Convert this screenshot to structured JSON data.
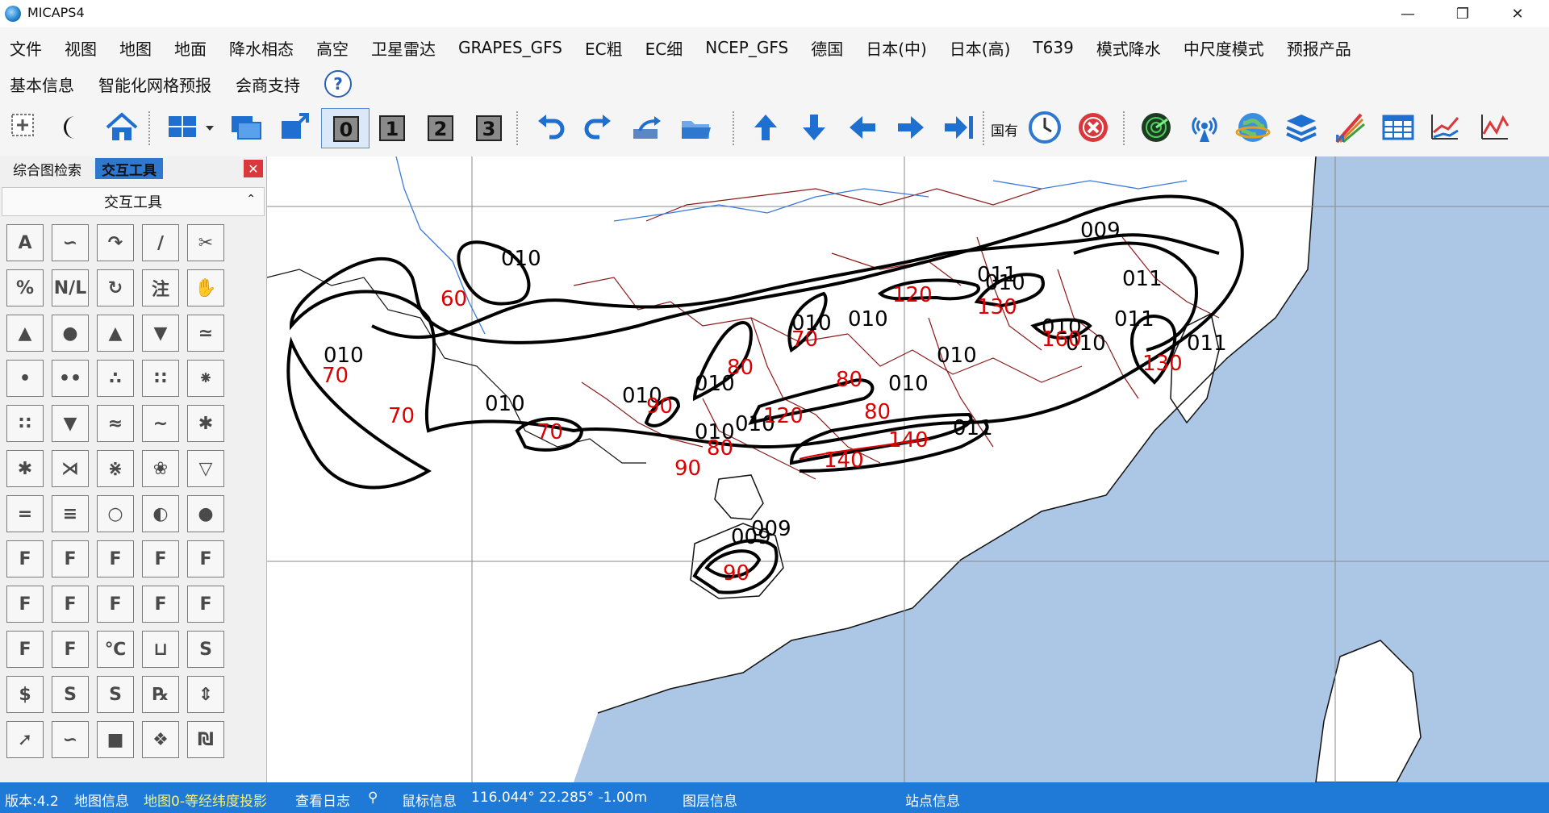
{
  "window": {
    "title": "MICAPS4"
  },
  "menu": {
    "row1": [
      "文件",
      "视图",
      "地图",
      "地面",
      "降水相态",
      "高空",
      "卫星雷达",
      "GRAPES_GFS",
      "EC粗",
      "EC细",
      "NCEP_GFS",
      "德国",
      "日本(中)",
      "日本(高)",
      "T639",
      "模式降水",
      "中尺度模式",
      "预报产品"
    ],
    "row2": [
      "基本信息",
      "智能化网格预报",
      "会商支持"
    ]
  },
  "toolbar": {
    "label_guoyou": "国有"
  },
  "left_panel": {
    "tabs": [
      "综合图检索",
      "交互工具"
    ],
    "header": "交互工具",
    "tool_icons": [
      "text-A-icon",
      "curve-icon",
      "arc-icon",
      "line-icon",
      "scissors-icon",
      "percent-icon",
      "nl-icon",
      "loop-icon",
      "annotate-icon",
      "hand-icon",
      "cold-front-icon",
      "warm-front-icon",
      "occluded-front-icon",
      "stationary-front-icon",
      "jet-icon",
      "dot1-icon",
      "dot2-icon",
      "dot3-icon",
      "dot4-icon",
      "dot5-icon",
      "grid-dots-icon",
      "drizzle-icon",
      "fog-icon",
      "haze-icon",
      "snowflake-star-icon",
      "snow-icon",
      "blowing-snow-icon",
      "drifting-snow-icon",
      "sandstorm-icon",
      "shower-icon",
      "double-line-icon",
      "triple-line-icon",
      "circle-icon",
      "half-circle-icon",
      "filled-circle-icon",
      "flag1-icon",
      "flag2-icon",
      "flag3-icon",
      "flag4-icon",
      "flag5-icon",
      "flag6-icon",
      "flag7-icon",
      "flag8-icon",
      "flag9-icon",
      "flag10-icon",
      "flag11-icon",
      "flag12-icon",
      "celsius-icon",
      "bracket-icon",
      "s-icon",
      "dollar-icon",
      "s-arrow-icon",
      "s-cross-icon",
      "person-icon",
      "up-down-icon",
      "arrow-icon",
      "double-curve-icon",
      "shape-icon",
      "diamond-arrows-icon",
      "typhoon-icon"
    ]
  },
  "map": {
    "labels_black": [
      "010",
      "010",
      "010",
      "010",
      "010",
      "010",
      "010",
      "010",
      "010",
      "010",
      "010",
      "011",
      "010",
      "011",
      "011",
      "009",
      "009",
      "011",
      "010",
      "010",
      "009",
      "011"
    ],
    "labels_red": [
      "60",
      "70",
      "70",
      "70",
      "90",
      "90",
      "80",
      "80",
      "70",
      "120",
      "80",
      "80",
      "120",
      "130",
      "160",
      "130",
      "90",
      "140",
      "140"
    ]
  },
  "status": {
    "version": "版本:4.2",
    "map_info": "地图信息",
    "projection": "地图0-等经纬度投影",
    "log": "查看日志",
    "mouse_info": "鼠标信息",
    "coords": "116.044° 22.285° -1.00m",
    "layer_info": "图层信息",
    "station_info": "站点信息"
  }
}
